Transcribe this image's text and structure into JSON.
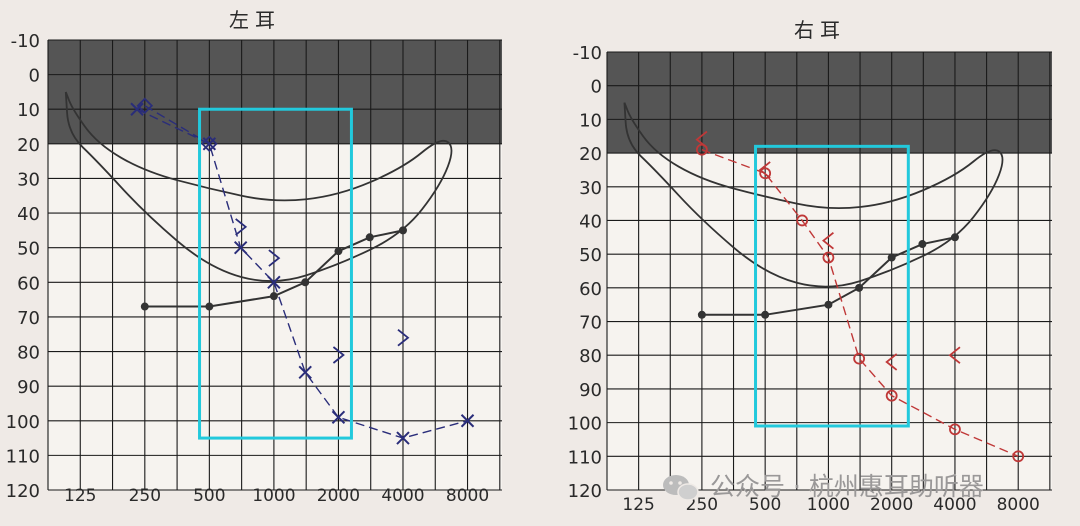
{
  "page": {
    "background": "#efeae6"
  },
  "watermark": {
    "text": "公众号 · 杭州惠耳助听器",
    "icon": "wechat-icon"
  },
  "chart_data": [
    {
      "type": "line",
      "title": "左耳",
      "x_scale": "log2",
      "xticks": [
        "125",
        "250",
        "500",
        "1000",
        "2000",
        "4000",
        "8000"
      ],
      "yticks": [
        "-10",
        "0",
        "10",
        "20",
        "30",
        "40",
        "50",
        "60",
        "70",
        "80",
        "90",
        "100",
        "110",
        "120"
      ],
      "ylim": [
        -10,
        120
      ],
      "y_inverted": true,
      "grid": true,
      "shaded_region": {
        "from": -10,
        "to": 20,
        "color": "#555555"
      },
      "ink_color": "#2a2d7a",
      "highlight_box": {
        "x": [
          450,
          2300
        ],
        "y": [
          10,
          105
        ],
        "color": "#22c9dc"
      },
      "banana_curve": {
        "upper": [
          [
            107,
            5
          ],
          [
            115,
            10
          ],
          [
            150,
            20
          ],
          [
            250,
            28
          ],
          [
            500,
            33
          ],
          [
            1000,
            37
          ],
          [
            2000,
            35
          ],
          [
            4000,
            27
          ],
          [
            6000,
            18
          ],
          [
            7000,
            21
          ],
          [
            6000,
            32
          ],
          [
            4000,
            46
          ],
          [
            2000,
            55
          ],
          [
            1000,
            61
          ],
          [
            500,
            56
          ],
          [
            250,
            40
          ],
          [
            150,
            25
          ],
          [
            110,
            17
          ],
          [
            107,
            5
          ]
        ]
      },
      "series": [
        {
          "role": "speech-curve",
          "marker": "dot",
          "color": "#333333",
          "points": [
            [
              250,
              67
            ],
            [
              500,
              67
            ],
            [
              1000,
              64
            ],
            [
              1400,
              60
            ],
            [
              2000,
              51
            ],
            [
              2800,
              47
            ],
            [
              4000,
              45
            ]
          ]
        },
        {
          "role": "air-conduction",
          "marker": "x",
          "color": "#2a2d7a",
          "points": [
            [
              230,
              10
            ],
            [
              500,
              20
            ],
            [
              700,
              50
            ],
            [
              1000,
              60
            ],
            [
              1400,
              86
            ],
            [
              2000,
              99
            ],
            [
              4000,
              105
            ],
            [
              8000,
              100
            ]
          ]
        },
        {
          "role": "masked-bone",
          "marker": "diamond",
          "color": "#2a2d7a",
          "points": [
            [
              250,
              9
            ],
            [
              500,
              20
            ]
          ]
        },
        {
          "role": "bone-conduction",
          "marker": ">",
          "color": "#2a2d7a",
          "points": [
            [
              700,
              44
            ],
            [
              1000,
              53
            ],
            [
              2000,
              81
            ],
            [
              4000,
              76
            ]
          ]
        }
      ]
    },
    {
      "type": "line",
      "title": "右耳",
      "x_scale": "log2",
      "xticks": [
        "125",
        "250",
        "500",
        "1000",
        "2000",
        "4000",
        "8000"
      ],
      "yticks": [
        "-10",
        "0",
        "10",
        "20",
        "30",
        "40",
        "50",
        "60",
        "70",
        "80",
        "90",
        "100",
        "110",
        "120"
      ],
      "ylim": [
        -10,
        120
      ],
      "y_inverted": true,
      "grid": true,
      "shaded_region": {
        "from": -10,
        "to": 20,
        "color": "#555555"
      },
      "ink_color": "#c03838",
      "highlight_box": {
        "x": [
          450,
          2400
        ],
        "y": [
          18,
          101
        ],
        "color": "#22c9dc"
      },
      "banana_curve": {
        "upper": [
          [
            107,
            5
          ],
          [
            115,
            10
          ],
          [
            150,
            20
          ],
          [
            250,
            28
          ],
          [
            500,
            33
          ],
          [
            1000,
            37
          ],
          [
            2000,
            35
          ],
          [
            4000,
            27
          ],
          [
            6000,
            18
          ],
          [
            7000,
            21
          ],
          [
            6000,
            32
          ],
          [
            4000,
            46
          ],
          [
            2000,
            55
          ],
          [
            1000,
            61
          ],
          [
            500,
            56
          ],
          [
            250,
            40
          ],
          [
            150,
            25
          ],
          [
            110,
            17
          ],
          [
            107,
            5
          ]
        ]
      },
      "series": [
        {
          "role": "speech-curve",
          "marker": "dot",
          "color": "#333333",
          "points": [
            [
              250,
              68
            ],
            [
              500,
              68
            ],
            [
              1000,
              65
            ],
            [
              1400,
              60
            ],
            [
              2000,
              51
            ],
            [
              2800,
              47
            ],
            [
              4000,
              45
            ]
          ]
        },
        {
          "role": "air-conduction",
          "marker": "circle",
          "color": "#c03838",
          "points": [
            [
              250,
              19
            ],
            [
              500,
              26
            ],
            [
              750,
              40
            ],
            [
              1000,
              51
            ],
            [
              1400,
              81
            ],
            [
              2000,
              92
            ],
            [
              4000,
              102
            ],
            [
              8000,
              110
            ]
          ]
        },
        {
          "role": "bone-conduction",
          "marker": "<",
          "color": "#c03838",
          "points": [
            [
              250,
              16
            ],
            [
              500,
              25
            ],
            [
              1000,
              46
            ],
            [
              2000,
              82
            ],
            [
              4000,
              80
            ]
          ]
        }
      ]
    }
  ]
}
